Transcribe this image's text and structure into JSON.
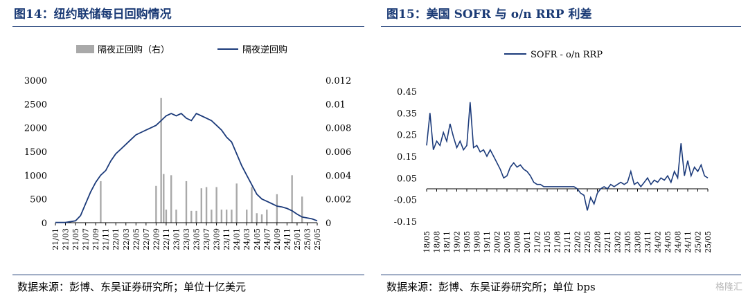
{
  "left": {
    "title": "图14：纽约联储每日回购情况",
    "source": "数据来源：彭博、东吴证券研究所；单位十亿美元",
    "chart_data": {
      "type": "bar+line",
      "legend": [
        "隔夜正回购（右）",
        "隔夜逆回购"
      ],
      "series_colors": {
        "bar": "#a9a9a9",
        "line": "#1b3a7a"
      },
      "y_left": {
        "ticks": [
          "3000",
          "2500",
          "2000",
          "1500",
          "1000",
          "500",
          "0"
        ],
        "range": [
          0,
          3000
        ]
      },
      "y_right": {
        "ticks": [
          "0.012",
          "0.01",
          "0.008",
          "0.006",
          "0.004",
          "0.002",
          "0"
        ],
        "range": [
          0,
          0.012
        ]
      },
      "x_ticks": [
        "21/01",
        "21/03",
        "21/05",
        "21/07",
        "21/09",
        "21/11",
        "22/01",
        "22/03",
        "22/05",
        "22/07",
        "22/09",
        "22/11",
        "23/01",
        "23/03",
        "23/05",
        "23/07",
        "23/09",
        "23/11",
        "24/01",
        "24/03",
        "24/05",
        "24/07",
        "24/09",
        "24/11",
        "25/01",
        "25/03",
        "25/05"
      ],
      "x_range": [
        0,
        52
      ],
      "line_points": [
        [
          0,
          5
        ],
        [
          2,
          5
        ],
        [
          4,
          40
        ],
        [
          5,
          150
        ],
        [
          6,
          400
        ],
        [
          7,
          650
        ],
        [
          8,
          850
        ],
        [
          9,
          1000
        ],
        [
          10,
          1100
        ],
        [
          11,
          1300
        ],
        [
          12,
          1450
        ],
        [
          13,
          1550
        ],
        [
          14,
          1650
        ],
        [
          15,
          1750
        ],
        [
          16,
          1850
        ],
        [
          17,
          1900
        ],
        [
          18,
          1950
        ],
        [
          19,
          2000
        ],
        [
          20,
          2050
        ],
        [
          21,
          2150
        ],
        [
          22,
          2250
        ],
        [
          23,
          2300
        ],
        [
          24,
          2250
        ],
        [
          25,
          2300
        ],
        [
          26,
          2200
        ],
        [
          27,
          2150
        ],
        [
          28,
          2300
        ],
        [
          29,
          2250
        ],
        [
          30,
          2200
        ],
        [
          31,
          2150
        ],
        [
          32,
          2050
        ],
        [
          33,
          1950
        ],
        [
          34,
          1800
        ],
        [
          35,
          1700
        ],
        [
          36,
          1450
        ],
        [
          37,
          1200
        ],
        [
          38,
          1000
        ],
        [
          39,
          800
        ],
        [
          40,
          600
        ],
        [
          41,
          500
        ],
        [
          42,
          450
        ],
        [
          43,
          400
        ],
        [
          44,
          350
        ],
        [
          45,
          330
        ],
        [
          46,
          300
        ],
        [
          47,
          250
        ],
        [
          48,
          180
        ],
        [
          49,
          120
        ],
        [
          50,
          100
        ],
        [
          51,
          80
        ],
        [
          52,
          40
        ]
      ],
      "bar_points": [
        [
          9,
          0.0035
        ],
        [
          20,
          0.0031
        ],
        [
          21,
          0.0105
        ],
        [
          21.5,
          0.0041
        ],
        [
          22,
          0.0011
        ],
        [
          23,
          0.004
        ],
        [
          24,
          0.0011
        ],
        [
          26,
          0.0035
        ],
        [
          27,
          0.001
        ],
        [
          28,
          0.001
        ],
        [
          29,
          0.0029
        ],
        [
          30,
          0.003
        ],
        [
          31,
          0.0011
        ],
        [
          32,
          0.003
        ],
        [
          33,
          0.0011
        ],
        [
          34,
          0.0011
        ],
        [
          35,
          0.0011
        ],
        [
          36,
          0.0033
        ],
        [
          38,
          0.0011
        ],
        [
          39,
          0.003
        ],
        [
          40,
          0.0008
        ],
        [
          41,
          0.0007
        ],
        [
          42,
          0.0011
        ],
        [
          44,
          0.0024
        ],
        [
          47,
          0.004
        ],
        [
          49,
          0.0022
        ]
      ]
    }
  },
  "right": {
    "title": "图15：美国 SOFR 与 o/n RRP 利差",
    "source": "数据来源：彭博、东吴证券研究所；单位 bps",
    "chart_data": {
      "type": "line",
      "legend": [
        "SOFR - o/n RRP"
      ],
      "series_color": "#1b3a7a",
      "y_ticks": [
        "0.45",
        "0.35",
        "0.25",
        "0.15",
        "0.05",
        "-0.05",
        "-0.15"
      ],
      "y_range": [
        -0.15,
        0.45
      ],
      "x_ticks": [
        "18/05",
        "18/08",
        "18/11",
        "19/02",
        "19/05",
        "19/08",
        "19/11",
        "20/02",
        "20/05",
        "20/08",
        "20/11",
        "21/02",
        "21/05",
        "21/08",
        "21/11",
        "22/02",
        "22/05",
        "22/08",
        "22/11",
        "23/02",
        "23/05",
        "23/08",
        "23/11",
        "24/02",
        "24/05",
        "24/08",
        "24/11",
        "25/02",
        "25/05"
      ],
      "x_range": [
        0,
        84
      ],
      "line_points": [
        [
          0,
          0.2
        ],
        [
          1,
          0.35
        ],
        [
          2,
          0.18
        ],
        [
          3,
          0.22
        ],
        [
          4,
          0.2
        ],
        [
          5,
          0.26
        ],
        [
          6,
          0.22
        ],
        [
          7,
          0.3
        ],
        [
          8,
          0.24
        ],
        [
          9,
          0.19
        ],
        [
          10,
          0.22
        ],
        [
          11,
          0.18
        ],
        [
          12,
          0.2
        ],
        [
          13,
          0.4
        ],
        [
          14,
          0.19
        ],
        [
          15,
          0.2
        ],
        [
          16,
          0.17
        ],
        [
          17,
          0.18
        ],
        [
          18,
          0.15
        ],
        [
          19,
          0.18
        ],
        [
          20,
          0.15
        ],
        [
          21,
          0.12
        ],
        [
          22,
          0.09
        ],
        [
          23,
          0.05
        ],
        [
          24,
          0.06
        ],
        [
          25,
          0.1
        ],
        [
          26,
          0.12
        ],
        [
          27,
          0.1
        ],
        [
          28,
          0.11
        ],
        [
          29,
          0.09
        ],
        [
          30,
          0.08
        ],
        [
          31,
          0.06
        ],
        [
          32,
          0.03
        ],
        [
          33,
          0.02
        ],
        [
          34,
          0.02
        ],
        [
          35,
          0.01
        ],
        [
          36,
          0.01
        ],
        [
          38,
          0.01
        ],
        [
          40,
          0.01
        ],
        [
          42,
          0.01
        ],
        [
          44,
          0.01
        ],
        [
          45,
          0.0
        ],
        [
          46,
          -0.02
        ],
        [
          47,
          -0.03
        ],
        [
          48,
          -0.1
        ],
        [
          49,
          -0.04
        ],
        [
          50,
          -0.07
        ],
        [
          51,
          -0.02
        ],
        [
          52,
          0.0
        ],
        [
          53,
          0.01
        ],
        [
          54,
          0.0
        ],
        [
          55,
          0.02
        ],
        [
          56,
          0.01
        ],
        [
          57,
          0.02
        ],
        [
          58,
          0.03
        ],
        [
          59,
          0.02
        ],
        [
          60,
          0.03
        ],
        [
          61,
          0.08
        ],
        [
          62,
          0.02
        ],
        [
          63,
          0.03
        ],
        [
          64,
          0.01
        ],
        [
          65,
          0.03
        ],
        [
          66,
          0.05
        ],
        [
          67,
          0.02
        ],
        [
          68,
          0.04
        ],
        [
          69,
          0.03
        ],
        [
          70,
          0.05
        ],
        [
          71,
          0.04
        ],
        [
          72,
          0.06
        ],
        [
          73,
          0.03
        ],
        [
          74,
          0.08
        ],
        [
          75,
          0.05
        ],
        [
          76,
          0.21
        ],
        [
          77,
          0.06
        ],
        [
          78,
          0.13
        ],
        [
          79,
          0.06
        ],
        [
          80,
          0.1
        ],
        [
          81,
          0.08
        ],
        [
          82,
          0.11
        ],
        [
          83,
          0.06
        ],
        [
          84,
          0.05
        ]
      ]
    }
  },
  "watermark": "格隆汇"
}
